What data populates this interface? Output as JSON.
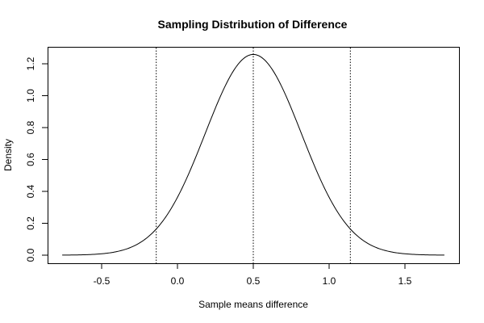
{
  "chart_data": {
    "type": "line",
    "title": "Sampling Distribution of Difference",
    "xlabel": "Sample means difference",
    "ylabel": "Density",
    "xlim": [
      -0.75,
      1.75
    ],
    "ylim": [
      0,
      1.26
    ],
    "x_ticks": [
      -0.5,
      0.0,
      0.5,
      1.0,
      1.5
    ],
    "x_tick_labels": [
      "-0.5",
      "0.0",
      "0.5",
      "1.0",
      "1.5"
    ],
    "y_ticks": [
      0.0,
      0.2,
      0.4,
      0.6,
      0.8,
      1.0,
      1.2
    ],
    "y_tick_labels": [
      "0.0",
      "0.2",
      "0.4",
      "0.6",
      "0.8",
      "1.0",
      "1.2"
    ],
    "series": [
      {
        "name": "density",
        "distribution": "normal",
        "mean": 0.5,
        "sd": 0.317,
        "x_range": [
          -0.76,
          1.76
        ]
      }
    ],
    "vlines": [
      {
        "name": "lower-bound",
        "x": -0.14,
        "style": "dotted"
      },
      {
        "name": "mean",
        "x": 0.5,
        "style": "dotted"
      },
      {
        "name": "upper-bound",
        "x": 1.14,
        "style": "dotted"
      }
    ],
    "grid": false,
    "colors": {
      "line": "#000000",
      "axis": "#000000",
      "background": "#ffffff"
    }
  }
}
